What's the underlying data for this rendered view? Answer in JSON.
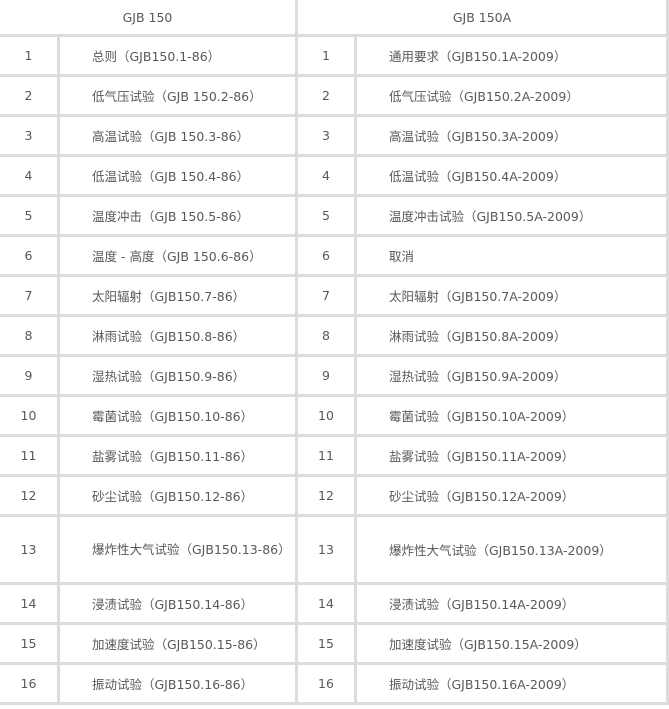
{
  "headers": [
    "GJB 150",
    "GJB  150A"
  ],
  "rows": [
    {
      "n1": "1",
      "old": "总则（GJB150.1-86）",
      "n2": "1",
      "new": "通用要求（GJB150.1A-2009）"
    },
    {
      "n1": "2",
      "old": "低气压试验（GJB 150.2-86）",
      "n2": "2",
      "new": "低气压试验（GJB150.2A-2009）"
    },
    {
      "n1": "3",
      "old": "高温试验（GJB 150.3-86）",
      "n2": "3",
      "new": "高温试验（GJB150.3A-2009）"
    },
    {
      "n1": "4",
      "old": "低温试验（GJB 150.4-86）",
      "n2": "4",
      "new": "低温试验（GJB150.4A-2009）"
    },
    {
      "n1": "5",
      "old": "温度冲击（GJB 150.5-86）",
      "n2": "5",
      "new": "温度冲击试验（GJB150.5A-2009）"
    },
    {
      "n1": "6",
      "old": "温度 - 高度（GJB 150.6-86）",
      "n2": "6",
      "new": "取消"
    },
    {
      "n1": "7",
      "old": "太阳辐射（GJB150.7-86）",
      "n2": "7",
      "new": "太阳辐射（GJB150.7A-2009）"
    },
    {
      "n1": "8",
      "old": "淋雨试验（GJB150.8-86）",
      "n2": "8",
      "new": "淋雨试验（GJB150.8A-2009）"
    },
    {
      "n1": "9",
      "old": "湿热试验（GJB150.9-86）",
      "n2": "9",
      "new": "湿热试验（GJB150.9A-2009）"
    },
    {
      "n1": "10",
      "old": "霉菌试验（GJB150.10-86）",
      "n2": "10",
      "new": "霉菌试验（GJB150.10A-2009）"
    },
    {
      "n1": "11",
      "old": "盐雾试验（GJB150.11-86）",
      "n2": "11",
      "new": "盐雾试验（GJB150.11A-2009）"
    },
    {
      "n1": "12",
      "old": "砂尘试验（GJB150.12-86）",
      "n2": "12",
      "new": "砂尘试验（GJB150.12A-2009）"
    },
    {
      "n1": "13",
      "old": "爆炸性大气试验（GJB150.13-86）",
      "n2": "13",
      "new": "爆炸性大气试验（GJB150.13A-2009）"
    },
    {
      "n1": "14",
      "old": "浸渍试验（GJB150.14-86）",
      "n2": "14",
      "new": "浸渍试验（GJB150.14A-2009）"
    },
    {
      "n1": "15",
      "old": "加速度试验（GJB150.15-86）",
      "n2": "15",
      "new": "加速度试验（GJB150.15A-2009）"
    },
    {
      "n1": "16",
      "old": "振动试验（GJB150.16-86）",
      "n2": "16",
      "new": "振动试验（GJB150.16A-2009）"
    }
  ]
}
